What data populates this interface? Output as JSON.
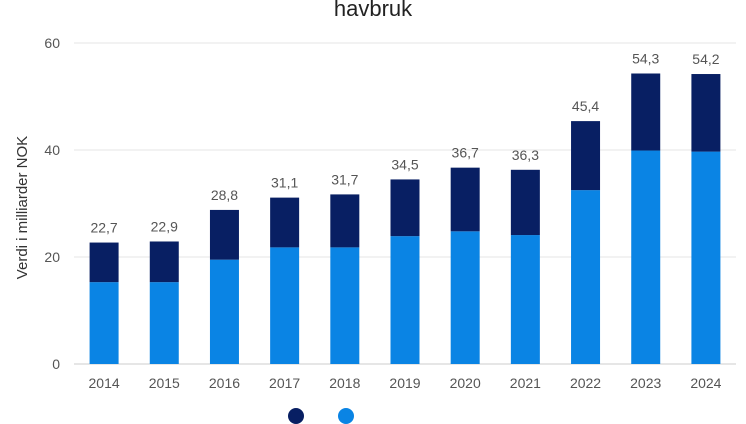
{
  "chart_data": {
    "type": "bar",
    "stacked": true,
    "title": "havbruk",
    "xlabel": "",
    "ylabel": "Verdi i milliarder NOK",
    "ylim": [
      0,
      60
    ],
    "yticks": [
      "0",
      "20",
      "40",
      "60"
    ],
    "grid": true,
    "legend_position": "bottom",
    "categories": [
      "2014",
      "2015",
      "2016",
      "2017",
      "2018",
      "2019",
      "2020",
      "2021",
      "2022",
      "2023",
      "2024"
    ],
    "series": [
      {
        "color": "#0a84e4",
        "values": [
          15.3,
          15.3,
          19.5,
          21.8,
          21.8,
          23.9,
          24.8,
          24.1,
          32.5,
          39.9,
          39.7
        ]
      },
      {
        "color": "#081f63",
        "values": [
          7.4,
          7.6,
          9.3,
          9.3,
          9.9,
          10.6,
          11.9,
          12.2,
          12.9,
          14.4,
          14.5
        ]
      }
    ],
    "totals": [
      "22,7",
      "22,9",
      "28,8",
      "31,1",
      "31,7",
      "34,5",
      "36,7",
      "36,3",
      "45,4",
      "54,3",
      "54,2"
    ]
  }
}
